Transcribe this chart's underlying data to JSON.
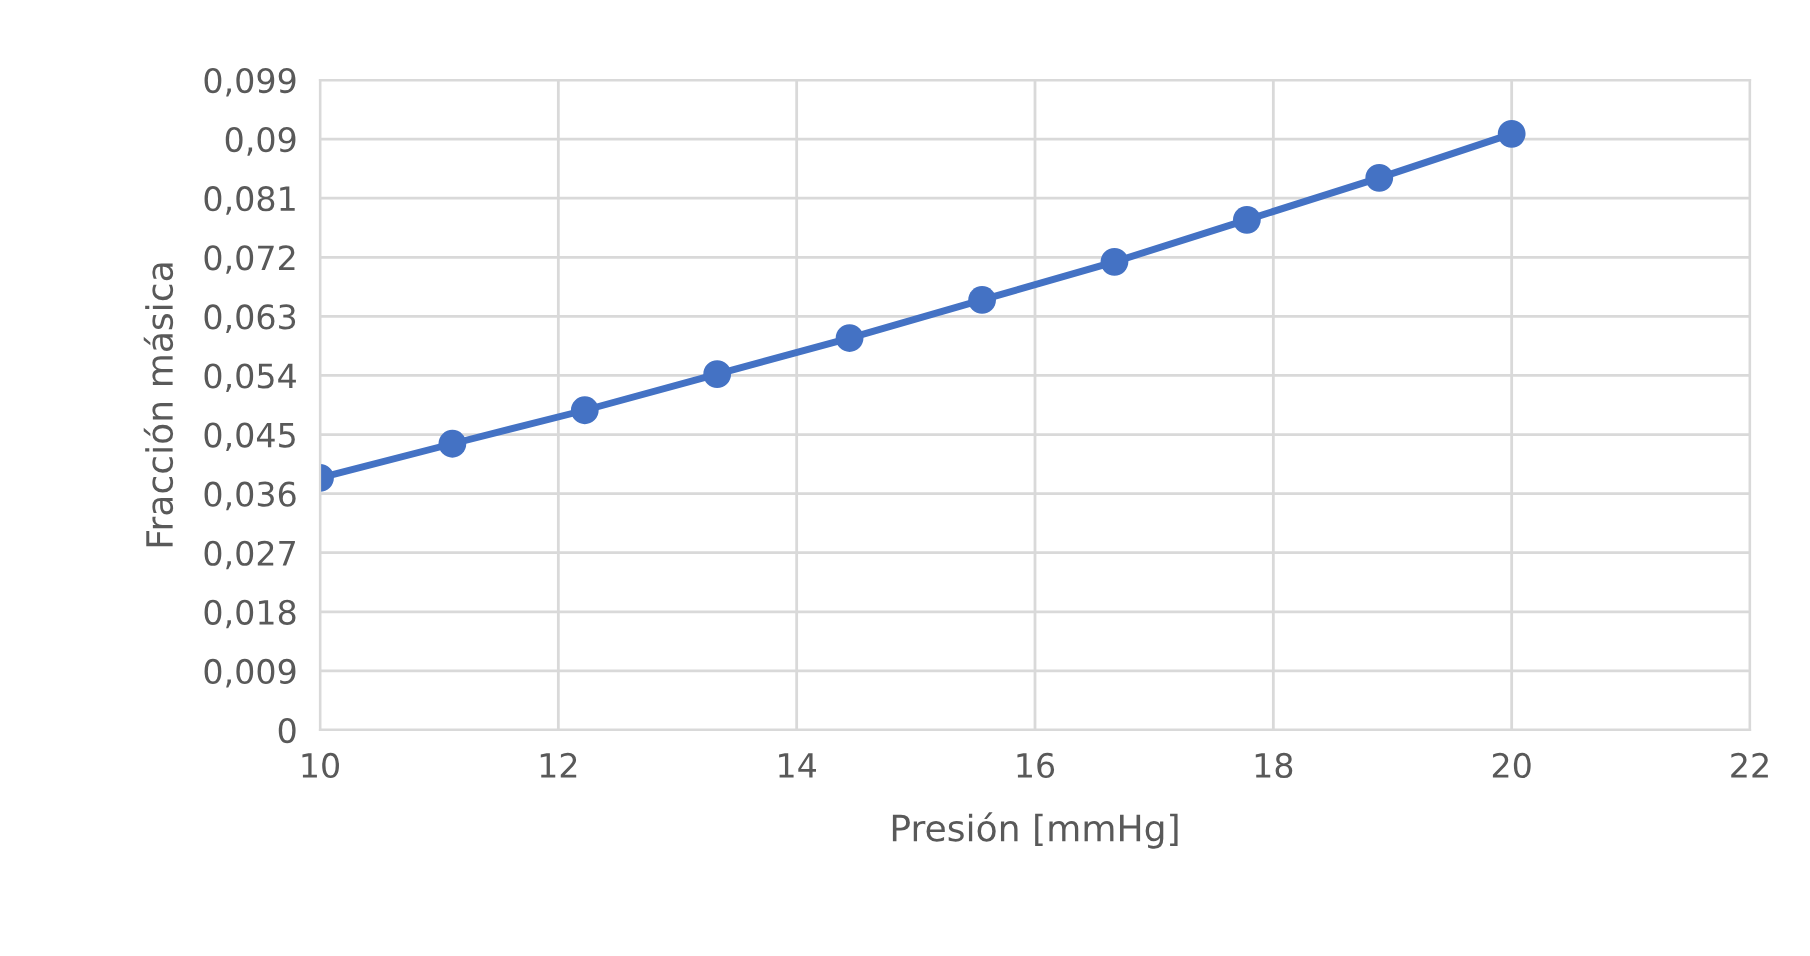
{
  "chart_data": {
    "type": "line",
    "xlabel": "Presión [mmHg]",
    "ylabel": "Fracción másica",
    "x": [
      10,
      11.111,
      12.222,
      13.333,
      14.444,
      15.556,
      16.667,
      17.778,
      18.889,
      20
    ],
    "series": [
      {
        "color": "#4472c4",
        "values": [
          0.0384,
          0.0436,
          0.0487,
          0.0542,
          0.0597,
          0.0655,
          0.0713,
          0.0777,
          0.0841,
          0.0908
        ]
      }
    ],
    "xlim": [
      10,
      22
    ],
    "xticks": [
      10,
      12,
      14,
      16,
      18,
      20,
      22
    ],
    "ylim": [
      0,
      0.099
    ],
    "yticks": [
      0,
      {
        "value": 0.009,
        "label": "0,009"
      },
      {
        "value": 0.018,
        "label": "0,018"
      },
      {
        "value": 0.027,
        "label": "0,027"
      },
      {
        "value": 0.036,
        "label": "0,036"
      },
      {
        "value": 0.045,
        "label": "0,045"
      },
      {
        "value": 0.054,
        "label": "0,054"
      },
      {
        "value": 0.063,
        "label": "0,063"
      },
      {
        "value": 0.072,
        "label": "0,072"
      },
      {
        "value": 0.081,
        "label": "0,081"
      },
      {
        "value": 0.09,
        "label": "0,09"
      },
      {
        "value": 0.099,
        "label": "0,099"
      }
    ],
    "grid": true,
    "marker": "circle",
    "line_style": "solid"
  }
}
